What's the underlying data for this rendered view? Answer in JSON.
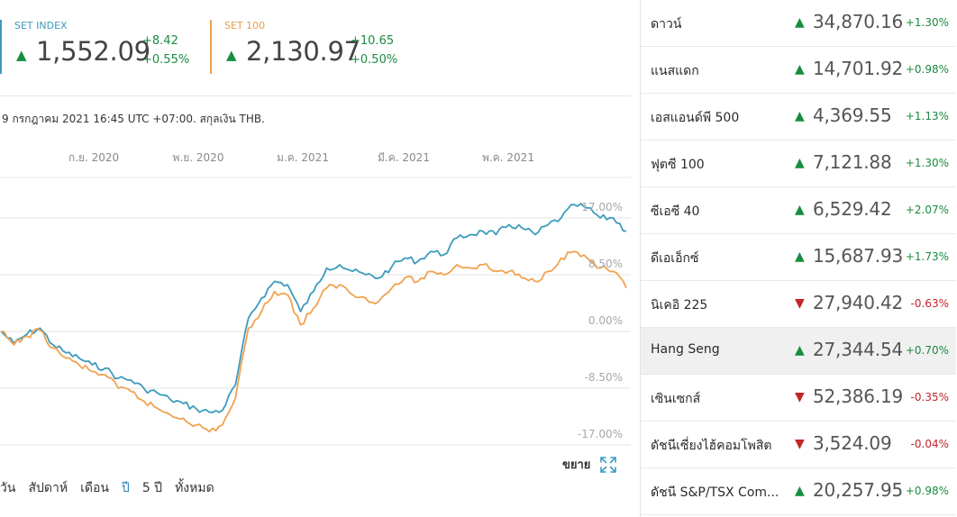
{
  "indices": [
    {
      "name": "SET INDEX",
      "value": "1,552.09",
      "change": "+8.42",
      "change_pct": "+0.55%",
      "color": "#3d9bbd"
    },
    {
      "name": "SET 100",
      "value": "2,130.97",
      "change": "+10.65",
      "change_pct": "+0.50%",
      "color": "#f0a24f"
    }
  ],
  "timestamp": "9 กรกฎาคม 2021 16:45 UTC +07:00. สกุลเงิน THB.",
  "chart_data": {
    "type": "line",
    "x_ticks": [
      "ก.ย. 2020",
      "พ.ย. 2020",
      "ม.ค. 2021",
      "มี.ค. 2021",
      "พ.ค. 2021"
    ],
    "y_ticks": [
      "17.00%",
      "8.50%",
      "0.00%",
      "-8.50%",
      "-17.00%"
    ],
    "ylim": [
      -17,
      17
    ],
    "grid": true,
    "series": [
      {
        "name": "SET INDEX",
        "color": "#3d9bbd",
        "values": [
          0.0,
          -1.8,
          -0.4,
          0.5,
          -2.0,
          -3.2,
          -4.0,
          -5.0,
          -5.5,
          -7.0,
          -7.3,
          -8.6,
          -9.2,
          -10.2,
          -10.8,
          -11.6,
          -12.1,
          -11.8,
          -8.0,
          2.0,
          5.0,
          7.5,
          7.0,
          3.0,
          6.0,
          9.5,
          10.0,
          9.0,
          8.5,
          8.0,
          9.7,
          11.0,
          10.5,
          12.0,
          11.5,
          14.0,
          14.5,
          15.0,
          14.5,
          16.0,
          15.5,
          14.5,
          16.0,
          17.0,
          19.0,
          18.5,
          17.0,
          17.0,
          15.0
        ]
      },
      {
        "name": "SET 100",
        "color": "#f0a24f",
        "values": [
          0.0,
          -2.0,
          -0.7,
          0.2,
          -2.5,
          -4.0,
          -5.0,
          -6.0,
          -6.5,
          -8.5,
          -9.0,
          -10.5,
          -11.5,
          -12.5,
          -13.0,
          -14.0,
          -15.0,
          -14.0,
          -10.0,
          0.5,
          3.0,
          6.0,
          5.5,
          1.0,
          3.5,
          6.5,
          7.0,
          5.5,
          5.0,
          4.5,
          6.5,
          8.0,
          7.5,
          9.0,
          8.5,
          10.0,
          9.5,
          10.0,
          9.0,
          9.0,
          8.0,
          7.5,
          9.0,
          11.0,
          12.0,
          11.0,
          9.5,
          9.0,
          6.5
        ]
      }
    ]
  },
  "expand": {
    "label": "ขยาย",
    "icon": "expand-icon"
  },
  "ranges": [
    {
      "label": "วัน",
      "active": false
    },
    {
      "label": "สัปดาห์",
      "active": false
    },
    {
      "label": "เดือน",
      "active": false
    },
    {
      "label": "ปี",
      "active": true
    },
    {
      "label": "5 ปี",
      "active": false
    },
    {
      "label": "ทั้งหมด",
      "active": false
    }
  ],
  "markets": [
    {
      "name": "ดาวน์",
      "direction": "up",
      "value": "34,870.16",
      "change_pct": "+1.30%",
      "active": false
    },
    {
      "name": "แนสแดก",
      "direction": "up",
      "value": "14,701.92",
      "change_pct": "+0.98%",
      "active": false
    },
    {
      "name": "เอสแอนด์พี 500",
      "direction": "up",
      "value": "4,369.55",
      "change_pct": "+1.13%",
      "active": false
    },
    {
      "name": "ฟุตซี 100",
      "direction": "up",
      "value": "7,121.88",
      "change_pct": "+1.30%",
      "active": false
    },
    {
      "name": "ซีเอซี 40",
      "direction": "up",
      "value": "6,529.42",
      "change_pct": "+2.07%",
      "active": false
    },
    {
      "name": "ดีเอเอ็กซ์",
      "direction": "up",
      "value": "15,687.93",
      "change_pct": "+1.73%",
      "active": false
    },
    {
      "name": "นิเคอิ 225",
      "direction": "down",
      "value": "27,940.42",
      "change_pct": "-0.63%",
      "active": false
    },
    {
      "name": "Hang Seng",
      "direction": "up",
      "value": "27,344.54",
      "change_pct": "+0.70%",
      "active": true
    },
    {
      "name": "เซินเซกส์",
      "direction": "down",
      "value": "52,386.19",
      "change_pct": "-0.35%",
      "active": false
    },
    {
      "name": "ดัชนีเซี่ยงไฮ้คอมโพสิต",
      "direction": "down",
      "value": "3,524.09",
      "change_pct": "-0.04%",
      "active": false
    },
    {
      "name": "ดัชนี S&P/TSX Com...",
      "direction": "up",
      "value": "20,257.95",
      "change_pct": "+0.98%",
      "active": false
    }
  ],
  "arrows": {
    "up": "▲",
    "down": "▼"
  }
}
